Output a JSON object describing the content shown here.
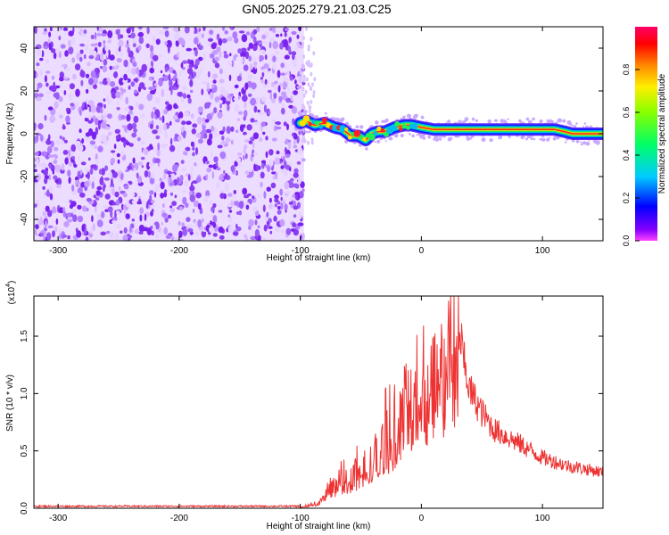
{
  "title": "GN05.2025.279.21.03.C25",
  "chart_data": [
    {
      "type": "heatmap",
      "name": "spectrogram",
      "xlabel": "Height of straight line (km)",
      "ylabel": "Frequency (Hz)",
      "xlim": [
        -320,
        150
      ],
      "ylim": [
        -50,
        50
      ],
      "xticks": [
        -300,
        -200,
        -100,
        0,
        100
      ],
      "yticks": [
        -40,
        -20,
        0,
        20,
        40
      ],
      "noise_region_km": [
        -320,
        -97
      ],
      "signal_ridge": {
        "x_km": [
          -100,
          -95,
          -88,
          -80,
          -72,
          -65,
          -58,
          -52,
          -46,
          -41,
          -36,
          -30,
          -22,
          -14,
          -8,
          0,
          10,
          30,
          60,
          90,
          110,
          118,
          125,
          140,
          150
        ],
        "freq_hz": [
          5,
          6,
          4,
          5,
          3,
          2,
          -1,
          -1,
          -3,
          0,
          1,
          1,
          3,
          4,
          4,
          3,
          2,
          2,
          2,
          2,
          2,
          1,
          0,
          0,
          0
        ]
      },
      "colorbar": {
        "label": "Normalized spectral amplitude",
        "range": [
          0,
          1
        ],
        "ticks": [
          "0.0",
          "0.2",
          "0.4",
          "0.6",
          "0.8"
        ]
      }
    },
    {
      "type": "line",
      "name": "snr",
      "color": "#ee3333",
      "xlabel": "Height of straight line (km)",
      "ylabel": "SNR (10 * v/v)",
      "multiplier_label": "(x10",
      "multiplier_exp": "4",
      "xlim": [
        -320,
        150
      ],
      "ylim": [
        0,
        1.85
      ],
      "xticks": [
        -300,
        -200,
        -100,
        0,
        100
      ],
      "yticks": [
        "0.0",
        "0.5",
        "1.0",
        "1.5"
      ],
      "envelope": {
        "x_km": [
          -320,
          -100,
          -85,
          -75,
          -60,
          -50,
          -40,
          -30,
          -20,
          -10,
          0,
          10,
          20,
          30,
          35,
          40,
          50,
          60,
          80,
          100,
          120,
          150
        ],
        "y_x10e4": [
          0.01,
          0.01,
          0.05,
          0.25,
          0.35,
          0.42,
          0.52,
          0.75,
          0.95,
          1.15,
          1.4,
          1.55,
          1.68,
          1.72,
          1.3,
          1.05,
          0.85,
          0.7,
          0.58,
          0.45,
          0.38,
          0.32
        ]
      }
    }
  ]
}
